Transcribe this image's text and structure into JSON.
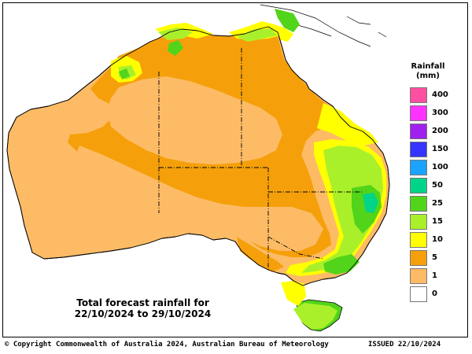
{
  "legend": {
    "title_line1": "Rainfall",
    "title_line2": "(mm)",
    "bins": [
      {
        "label": "400",
        "color": "#ff4fa0"
      },
      {
        "label": "300",
        "color": "#ff33ff"
      },
      {
        "label": "200",
        "color": "#a020f0"
      },
      {
        "label": "150",
        "color": "#3535ff"
      },
      {
        "label": "100",
        "color": "#1aa3ff"
      },
      {
        "label": "50",
        "color": "#00d488"
      },
      {
        "label": "25",
        "color": "#52d41a"
      },
      {
        "label": "15",
        "color": "#aaf02a"
      },
      {
        "label": "10",
        "color": "#ffff00"
      },
      {
        "label": "5",
        "color": "#f5a00a"
      },
      {
        "label": "1",
        "color": "#fdbb66"
      },
      {
        "label": "0",
        "color": "#ffffff"
      }
    ]
  },
  "map_title": {
    "line1": "Total forecast rainfall for",
    "line2": "22/10/2024 to 29/10/2024"
  },
  "footer": {
    "copyright": "© Copyright Commonwealth of Australia 2024, Australian Bureau of Meteorology",
    "issued": "ISSUED 22/10/2024"
  },
  "colors": {
    "land_1mm": "#fdbb66",
    "band_5mm": "#f5a00a",
    "band_10mm": "#ffff00",
    "band_15mm": "#aaf02a",
    "band_25mm": "#52d41a",
    "band_50mm": "#00d488",
    "band_100mm": "#1aa3ff",
    "outline": "#000000"
  }
}
